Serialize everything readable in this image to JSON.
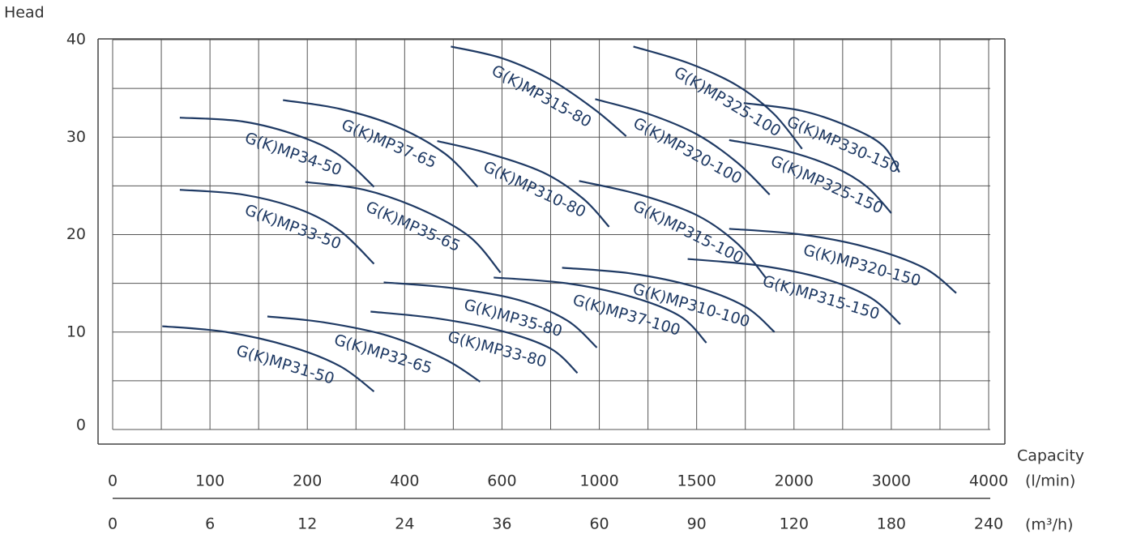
{
  "chart_data": {
    "type": "line",
    "ylabel": "Head",
    "xlabel": "Capacity",
    "xunit": "(l/min)",
    "x2unit": "(m³/h)",
    "ylim": [
      0,
      40
    ],
    "yticks": [
      0,
      10,
      20,
      30,
      40
    ],
    "xlim": [
      0,
      4000
    ],
    "xticks": [
      0,
      100,
      200,
      400,
      600,
      1000,
      1500,
      2000,
      3000,
      4000
    ],
    "x2ticks": [
      0,
      6,
      12,
      24,
      36,
      60,
      90,
      120,
      180,
      240
    ],
    "x_scale": "tick-spaced",
    "grid": true,
    "color": "#1f3a64",
    "series": [
      {
        "name": "G(K)MP31-50",
        "x": [
          51,
          117,
          183,
          267,
          337
        ],
        "values": [
          10.6,
          10.0,
          8.5,
          6.5,
          3.9
        ]
      },
      {
        "name": "G(K)MP32-65",
        "x": [
          159,
          233,
          367,
          483,
          555
        ],
        "values": [
          11.6,
          11.0,
          9.6,
          7.2,
          4.9
        ]
      },
      {
        "name": "G(K)MP33-80",
        "x": [
          330,
          467,
          600,
          800,
          910
        ],
        "values": [
          12.1,
          11.4,
          10.1,
          8.3,
          5.8
        ]
      },
      {
        "name": "G(K)MP35-80",
        "x": [
          357,
          500,
          667,
          867,
          990
        ],
        "values": [
          15.1,
          14.5,
          13.3,
          11.2,
          8.4
        ]
      },
      {
        "name": "G(K)MP37-100",
        "x": [
          583,
          867,
          1167,
          1417,
          1550
        ],
        "values": [
          15.6,
          15.0,
          13.6,
          11.6,
          8.9
        ]
      },
      {
        "name": "G(K)MP310-100",
        "x": [
          847,
          1167,
          1500,
          1750,
          1900
        ],
        "values": [
          16.6,
          16.0,
          14.6,
          12.6,
          10.0
        ]
      },
      {
        "name": "G(K)MP315-150",
        "x": [
          1454,
          1833,
          2333,
          2792,
          3092
        ],
        "values": [
          17.5,
          16.8,
          15.4,
          13.5,
          10.8
        ]
      },
      {
        "name": "G(K)MP320-150",
        "x": [
          1667,
          2083,
          2750,
          3333,
          3667
        ],
        "values": [
          20.6,
          20.0,
          18.7,
          16.6,
          14.0
        ]
      },
      {
        "name": "G(K)MP33-50",
        "x": [
          69,
          134,
          192,
          267,
          337
        ],
        "values": [
          24.6,
          24.1,
          22.6,
          20.4,
          17.0
        ]
      },
      {
        "name": "G(K)MP35-65",
        "x": [
          198,
          317,
          433,
          533,
          597
        ],
        "values": [
          25.4,
          24.6,
          22.6,
          19.8,
          16.1
        ]
      },
      {
        "name": "G(K)MP34-50",
        "x": [
          69,
          134,
          192,
          267,
          337
        ],
        "values": [
          32.0,
          31.6,
          30.1,
          28.1,
          24.9
        ]
      },
      {
        "name": "G(K)MP37-65",
        "x": [
          175,
          267,
          383,
          483,
          550
        ],
        "values": [
          33.8,
          32.9,
          31.1,
          28.3,
          24.9
        ]
      },
      {
        "name": "G(K)MP310-80",
        "x": [
          467,
          567,
          767,
          933,
          1050
        ],
        "values": [
          29.6,
          28.4,
          26.4,
          23.7,
          20.8
        ]
      },
      {
        "name": "G(K)MP315-100",
        "x": [
          917,
          1208,
          1500,
          1708,
          1854
        ],
        "values": [
          25.5,
          24.1,
          22.0,
          19.1,
          15.6
        ]
      },
      {
        "name": "G(K)MP315-80",
        "x": [
          495,
          600,
          800,
          983,
          1138
        ],
        "values": [
          39.3,
          38.1,
          35.9,
          32.8,
          30.1
        ]
      },
      {
        "name": "G(K)MP320-100",
        "x": [
          983,
          1250,
          1500,
          1708,
          1875
        ],
        "values": [
          33.9,
          32.4,
          30.3,
          27.4,
          24.1
        ]
      },
      {
        "name": "G(K)MP325-100",
        "x": [
          1175,
          1458,
          1708,
          1896,
          2083
        ],
        "values": [
          39.3,
          37.6,
          35.3,
          32.4,
          28.8
        ]
      },
      {
        "name": "G(K)MP325-150",
        "x": [
          1667,
          1958,
          2417,
          2750,
          3000
        ],
        "values": [
          29.7,
          28.6,
          26.9,
          24.9,
          22.2
        ]
      },
      {
        "name": "G(K)MP330-150",
        "x": [
          1742,
          2083,
          2583,
          2917,
          3083
        ],
        "values": [
          33.5,
          32.7,
          31.0,
          29.1,
          26.4
        ]
      }
    ]
  }
}
